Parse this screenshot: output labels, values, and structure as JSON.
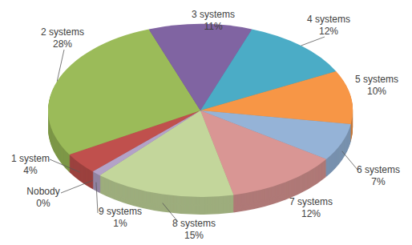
{
  "chart_data": {
    "type": "pie",
    "categories": [
      "Nobody",
      "1 system",
      "2 systems",
      "3 systems",
      "4 systems",
      "5 systems",
      "6 systems",
      "7 systems",
      "8 systems",
      "9 systems"
    ],
    "values": [
      0,
      4,
      28,
      11,
      12,
      10,
      7,
      12,
      15,
      1
    ],
    "value_labels": [
      "0%",
      "4%",
      "28%",
      "11%",
      "12%",
      "10%",
      "7%",
      "12%",
      "15%",
      "1%"
    ],
    "colors": [
      "#4f81bd",
      "#c0504d",
      "#9bbb59",
      "#8064a2",
      "#4bacc6",
      "#f79646",
      "#95b3d7",
      "#d99694",
      "#c3d69b",
      "#b3a2c7"
    ],
    "data_labels": true
  }
}
